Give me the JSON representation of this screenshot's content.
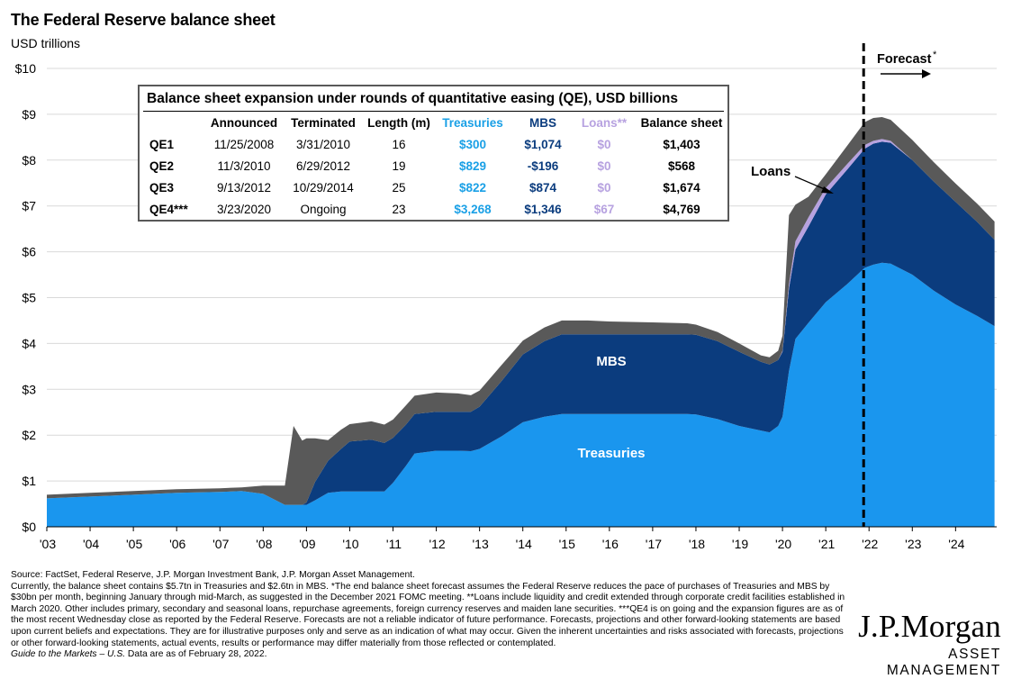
{
  "title": "The Federal Reserve balance sheet",
  "subtitle": "USD trillions",
  "colors": {
    "treasuries": "#1a96ee",
    "mbs": "#0b3c7e",
    "loans": "#b7a2e0",
    "other": "#595959",
    "treasuries_label": "#1aa0e6"
  },
  "chart_data": {
    "type": "area",
    "stacked": true,
    "ylim": [
      0,
      10
    ],
    "y_ticks": [
      "$0",
      "$1",
      "$2",
      "$3",
      "$4",
      "$5",
      "$6",
      "$7",
      "$8",
      "$9",
      "$10"
    ],
    "x_ticks": [
      "'03",
      "'04",
      "'05",
      "'06",
      "'07",
      "'08",
      "'09",
      "'10",
      "'11",
      "'12",
      "'13",
      "'14",
      "'15",
      "'16",
      "'17",
      "'18",
      "'19",
      "'20",
      "'21",
      "'22",
      "'23",
      "'24"
    ],
    "grid": true,
    "x": [
      2003.0,
      2004.0,
      2005.0,
      2006.0,
      2007.0,
      2007.5,
      2008.0,
      2008.5,
      2008.7,
      2008.9,
      2009.0,
      2009.2,
      2009.5,
      2009.8,
      2010.0,
      2010.5,
      2010.8,
      2011.0,
      2011.3,
      2011.5,
      2012.0,
      2012.5,
      2012.8,
      2013.0,
      2013.5,
      2014.0,
      2014.5,
      2014.9,
      2015.5,
      2016.0,
      2017.0,
      2017.8,
      2018.0,
      2018.5,
      2019.0,
      2019.5,
      2019.7,
      2019.9,
      2020.0,
      2020.15,
      2020.3,
      2020.6,
      2021.0,
      2021.5,
      2021.9,
      2022.1,
      2022.3,
      2022.5,
      2023.0,
      2023.5,
      2024.0,
      2024.5,
      2024.9
    ],
    "series": [
      {
        "name": "Treasuries",
        "values": [
          0.62,
          0.66,
          0.7,
          0.74,
          0.76,
          0.78,
          0.72,
          0.48,
          0.48,
          0.48,
          0.48,
          0.58,
          0.74,
          0.77,
          0.77,
          0.77,
          0.77,
          0.96,
          1.33,
          1.6,
          1.66,
          1.66,
          1.65,
          1.7,
          1.97,
          2.28,
          2.4,
          2.46,
          2.46,
          2.46,
          2.46,
          2.46,
          2.45,
          2.35,
          2.2,
          2.1,
          2.06,
          2.2,
          2.4,
          3.4,
          4.1,
          4.45,
          4.9,
          5.3,
          5.65,
          5.72,
          5.76,
          5.74,
          5.5,
          5.15,
          4.85,
          4.6,
          4.38
        ]
      },
      {
        "name": "MBS",
        "values": [
          0,
          0,
          0,
          0,
          0,
          0,
          0,
          0,
          0,
          0,
          0.05,
          0.4,
          0.7,
          0.93,
          1.09,
          1.13,
          1.06,
          0.98,
          0.9,
          0.86,
          0.85,
          0.85,
          0.86,
          0.92,
          1.2,
          1.48,
          1.65,
          1.74,
          1.74,
          1.74,
          1.74,
          1.74,
          1.74,
          1.7,
          1.62,
          1.5,
          1.48,
          1.44,
          1.42,
          1.8,
          1.95,
          2.1,
          2.35,
          2.5,
          2.6,
          2.64,
          2.64,
          2.64,
          2.5,
          2.38,
          2.24,
          2.05,
          1.88
        ]
      },
      {
        "name": "Loans",
        "values": [
          0,
          0,
          0,
          0,
          0,
          0,
          0,
          0,
          0,
          0,
          0,
          0,
          0,
          0,
          0,
          0,
          0,
          0,
          0,
          0,
          0,
          0,
          0,
          0,
          0,
          0,
          0,
          0,
          0,
          0,
          0,
          0,
          0,
          0,
          0,
          0,
          0,
          0,
          0.02,
          0.1,
          0.18,
          0.2,
          0.14,
          0.12,
          0.08,
          0.06,
          0.06,
          0.04,
          0,
          0,
          0,
          0,
          0
        ]
      },
      {
        "name": "Other",
        "values": [
          0.08,
          0.08,
          0.08,
          0.08,
          0.08,
          0.08,
          0.18,
          0.42,
          1.72,
          1.4,
          1.4,
          0.95,
          0.45,
          0.42,
          0.38,
          0.4,
          0.4,
          0.4,
          0.42,
          0.4,
          0.42,
          0.4,
          0.36,
          0.35,
          0.35,
          0.3,
          0.3,
          0.3,
          0.3,
          0.28,
          0.26,
          0.24,
          0.22,
          0.2,
          0.18,
          0.14,
          0.16,
          0.2,
          0.33,
          1.5,
          0.8,
          0.45,
          0.3,
          0.4,
          0.5,
          0.5,
          0.48,
          0.46,
          0.44,
          0.42,
          0.4,
          0.4,
          0.4
        ]
      }
    ],
    "area_labels": {
      "mbs": "MBS",
      "treasuries": "Treasuries",
      "loans": "Loans"
    },
    "forecast": {
      "label": "Forecast",
      "marker": "*",
      "x": 2022.0
    }
  },
  "qe_table": {
    "title": "Balance sheet expansion under rounds of quantitative easing (QE), USD billions",
    "headers": [
      "",
      "Announced",
      "Terminated",
      "Length (m)",
      "Treasuries",
      "MBS",
      "Loans**",
      "Balance sheet"
    ],
    "rows": [
      {
        "label": "QE1",
        "announced": "11/25/2008",
        "terminated": "3/31/2010",
        "length": "16",
        "treasuries": "$300",
        "mbs": "$1,074",
        "loans": "$0",
        "balance": "$1,403"
      },
      {
        "label": "QE2",
        "announced": "11/3/2010",
        "terminated": "6/29/2012",
        "length": "19",
        "treasuries": "$829",
        "mbs": "-$196",
        "loans": "$0",
        "balance": "$568"
      },
      {
        "label": "QE3",
        "announced": "9/13/2012",
        "terminated": "10/29/2014",
        "length": "25",
        "treasuries": "$822",
        "mbs": "$874",
        "loans": "$0",
        "balance": "$1,674"
      },
      {
        "label": "QE4***",
        "announced": "3/23/2020",
        "terminated": "Ongoing",
        "length": "23",
        "treasuries": "$3,268",
        "mbs": "$1,346",
        "loans": "$67",
        "balance": "$4,769"
      }
    ]
  },
  "footnote": {
    "source": "Source: FactSet, Federal Reserve, J.P. Morgan Investment Bank, J.P. Morgan Asset Management.",
    "body": "Currently, the balance sheet contains $5.7tn in Treasuries and $2.6tn in MBS. *The end balance sheet forecast assumes the Federal Reserve reduces the pace of purchases of Treasuries and MBS by $30bn per month, beginning January through mid-March, as suggested in the December 2021 FOMC meeting. **Loans include liquidity and credit extended through corporate credit facilities established in March 2020. Other includes primary, secondary and seasonal loans, repurchase agreements, foreign currency reserves and maiden lane securities. ***QE4 is on going and the expansion figures are as of the most recent Wednesday close as reported by the Federal Reserve. Forecasts are not a reliable indicator of future performance. Forecasts, projections and other forward-looking statements are based upon current beliefs and expectations. They are for illustrative purposes only and serve as an indication of what may occur. Given the inherent uncertainties and risks associated with forecasts, projections or other forward-looking statements, actual events, results or performance may differ materially from those reflected or contemplated.",
    "guide": "Guide to the Markets – U.S.",
    "date": " Data are as of February 28, 2022."
  },
  "logo": {
    "main": "J.P.Morgan",
    "sub": "ASSET MANAGEMENT"
  }
}
